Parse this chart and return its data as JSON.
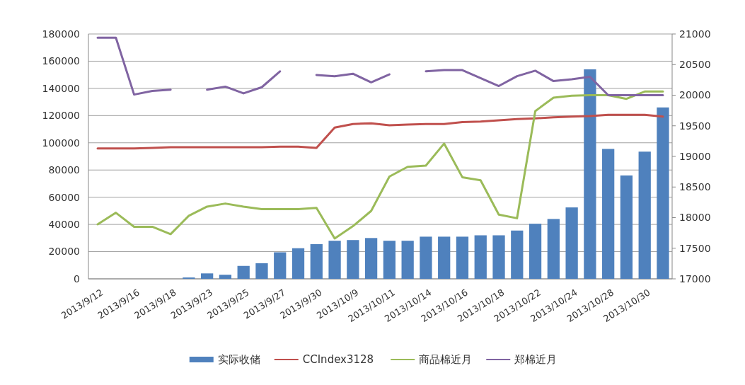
{
  "chart_data": {
    "type": "bar",
    "categories": [
      "2013/9/12",
      null,
      "2013/9/16",
      null,
      "2013/9/18",
      null,
      "2013/9/23",
      null,
      "2013/9/25",
      null,
      "2013/9/27",
      null,
      "2013/9/30",
      null,
      "2013/10/9",
      null,
      "2013/10/11",
      null,
      "2013/10/14",
      null,
      "2013/10/16",
      null,
      "2013/10/18",
      null,
      "2013/10/22",
      null,
      "2013/10/24",
      null,
      "2013/10/28",
      null,
      "2013/10/30",
      null
    ],
    "series": [
      {
        "name": "实际收储",
        "color": "#4f81bd",
        "values": [
          0,
          0,
          0,
          0,
          0,
          1000,
          4000,
          3000,
          9500,
          11500,
          19500,
          22500,
          25500,
          28000,
          28500,
          30000,
          28000,
          28000,
          31000,
          31000,
          31000,
          32000,
          32000,
          35500,
          40500,
          44000,
          52500,
          154000,
          95500,
          76000,
          93500,
          126000
        ]
      },
      {
        "name": "CCIndex3128",
        "type": "line",
        "axis": "y2",
        "color": "#c0504d",
        "values": [
          19130,
          19130,
          19130,
          19140,
          19150,
          19150,
          19150,
          19150,
          19150,
          19150,
          19160,
          19160,
          19140,
          19470,
          19530,
          19540,
          19510,
          19520,
          19530,
          19530,
          19560,
          19570,
          19590,
          19610,
          19620,
          19640,
          19650,
          19660,
          19680,
          19680,
          19680,
          19650
        ]
      },
      {
        "name": "商品棉近月",
        "type": "line",
        "axis": "y2",
        "color": "#9bbb59",
        "values": [
          17890,
          18080,
          17850,
          17850,
          17730,
          18030,
          18180,
          18230,
          18180,
          18140,
          18140,
          18140,
          18160,
          17660,
          17860,
          18110,
          18670,
          18830,
          18850,
          19210,
          18660,
          18610,
          18050,
          17990,
          19740,
          19960,
          19990,
          20000,
          20000,
          19940,
          20060,
          20060
        ]
      },
      {
        "name": "郑棉近月",
        "type": "line",
        "axis": "y2",
        "color": "#8064a2",
        "values": [
          20940,
          20940,
          20010,
          20070,
          20090,
          null,
          20090,
          20140,
          20030,
          20130,
          20390,
          null,
          20330,
          20310,
          20350,
          20210,
          20340,
          null,
          20390,
          20410,
          20410,
          20280,
          20150,
          20310,
          20400,
          20230,
          20260,
          20300,
          20000,
          20000,
          20000,
          20000
        ]
      }
    ],
    "ylim": [
      0,
      180000
    ],
    "yticks": [
      0,
      20000,
      40000,
      60000,
      80000,
      100000,
      120000,
      140000,
      160000,
      180000
    ],
    "y2lim": [
      17000,
      21000
    ],
    "y2ticks": [
      17000,
      17500,
      18000,
      18500,
      19000,
      19500,
      20000,
      20500,
      21000
    ],
    "grid": "y",
    "legend": "bottom"
  }
}
